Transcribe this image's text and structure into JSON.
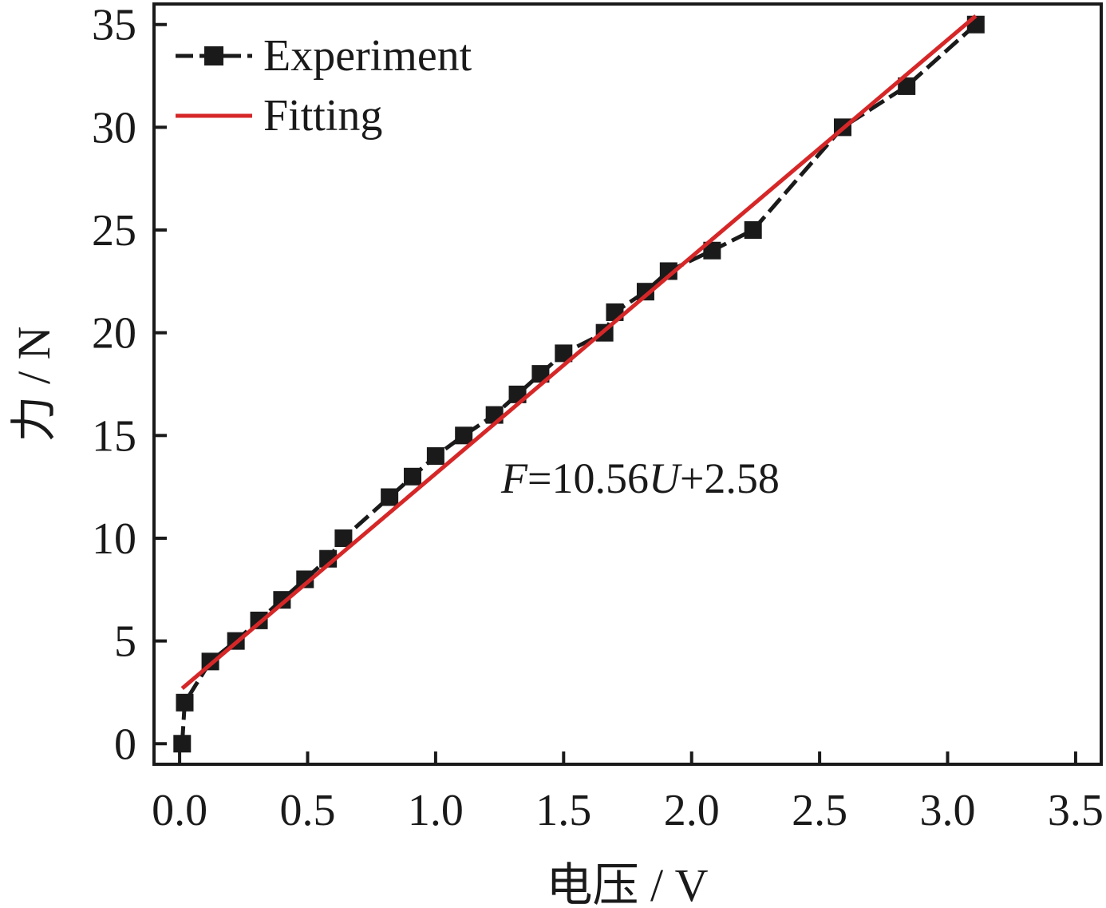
{
  "chart_data": {
    "type": "line",
    "title": "",
    "xlabel": "电压 / V",
    "ylabel": "力 / N",
    "xlim": [
      -0.1,
      3.6
    ],
    "ylim": [
      -1,
      36
    ],
    "x_ticks": [
      0.0,
      0.5,
      1.0,
      1.5,
      2.0,
      2.5,
      3.0,
      3.5
    ],
    "x_tick_labels": [
      "0.0",
      "0.5",
      "1.0",
      "1.5",
      "2.0",
      "2.5",
      "3.0",
      "3.5"
    ],
    "y_ticks": [
      0,
      5,
      10,
      15,
      20,
      25,
      30,
      35
    ],
    "y_tick_labels": [
      "0",
      "5",
      "10",
      "15",
      "20",
      "25",
      "30",
      "35"
    ],
    "grid": false,
    "legend_position": "top-left",
    "series": [
      {
        "name": "Experiment",
        "kind": "line-markers",
        "color": "#1a1a1a",
        "x": [
          0.01,
          0.02,
          0.12,
          0.22,
          0.31,
          0.4,
          0.49,
          0.58,
          0.64,
          0.82,
          0.91,
          1.0,
          1.11,
          1.23,
          1.32,
          1.41,
          1.5,
          1.66,
          1.7,
          1.82,
          1.91,
          2.08,
          2.24,
          2.59,
          2.84,
          3.11
        ],
        "y": [
          0,
          2,
          4,
          5,
          6,
          7,
          8,
          9,
          10,
          12,
          13,
          14,
          15,
          16,
          17,
          18,
          19,
          20,
          21,
          22,
          23,
          24,
          25,
          30,
          32,
          35
        ]
      },
      {
        "name": "Fitting",
        "kind": "line",
        "color": "#d62728",
        "x": [
          0.01,
          3.11
        ],
        "y": [
          2.69,
          35.42
        ]
      }
    ],
    "annotations": [
      {
        "parts": [
          {
            "text": "F",
            "italic": true
          },
          {
            "text": "=10.56",
            "italic": false
          },
          {
            "text": "U",
            "italic": true
          },
          {
            "text": "+2.58",
            "italic": false
          }
        ]
      }
    ]
  }
}
